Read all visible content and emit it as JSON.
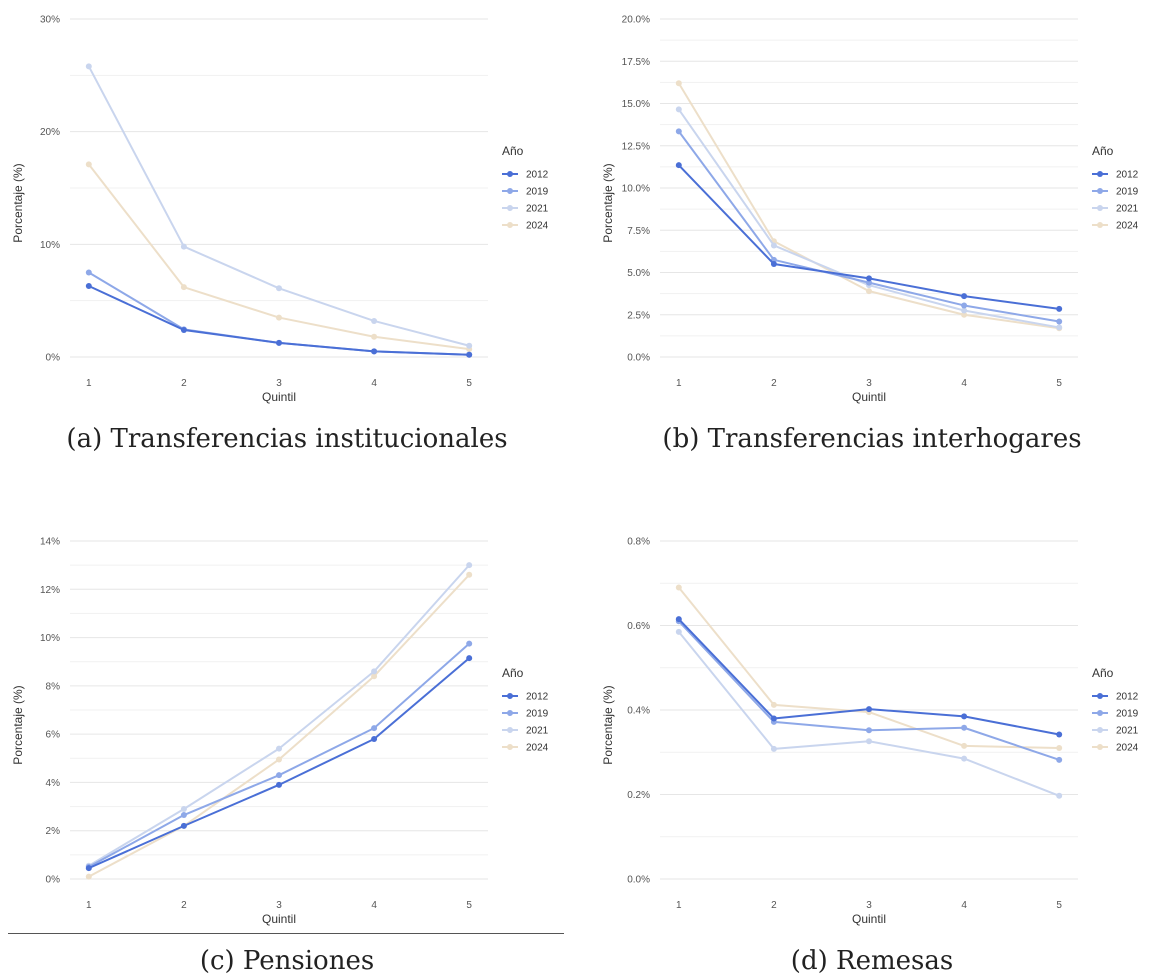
{
  "legend_title": "Año",
  "series_colors": {
    "2012": "#4a6fd6",
    "2019": "#8ea8e8",
    "2021": "#c9d5ee",
    "2024": "#eddfc9"
  },
  "chart_data": [
    {
      "type": "line",
      "caption": "(a) Transferencias institucionales",
      "xlabel": "Quintil",
      "ylabel": "Porcentaje (%)",
      "x": [
        1,
        2,
        3,
        4,
        5
      ],
      "ylim": [
        0,
        30
      ],
      "y_ticks": [
        0,
        10,
        20,
        30
      ],
      "y_tick_labels": [
        "0%",
        "10%",
        "20%",
        "30%"
      ],
      "legend_position": "right",
      "series": [
        {
          "name": "2012",
          "values": [
            6.3,
            2.4,
            1.25,
            0.5,
            0.2
          ]
        },
        {
          "name": "2019",
          "values": [
            7.5,
            2.45,
            1.25,
            0.5,
            0.2
          ]
        },
        {
          "name": "2021",
          "values": [
            25.8,
            9.8,
            6.1,
            3.2,
            1.0
          ]
        },
        {
          "name": "2024",
          "values": [
            17.1,
            6.2,
            3.5,
            1.8,
            0.7
          ]
        }
      ]
    },
    {
      "type": "line",
      "caption": "(b) Transferencias interhogares",
      "xlabel": "Quintil",
      "ylabel": "Porcentaje (%)",
      "x": [
        1,
        2,
        3,
        4,
        5
      ],
      "ylim": [
        0,
        20
      ],
      "y_ticks": [
        0,
        2.5,
        5,
        7.5,
        10,
        12.5,
        15,
        17.5,
        20
      ],
      "y_tick_labels": [
        "0.0%",
        "2.5%",
        "5.0%",
        "7.5%",
        "10.0%",
        "12.5%",
        "15.0%",
        "17.5%",
        "20.0%"
      ],
      "legend_position": "right",
      "series": [
        {
          "name": "2012",
          "values": [
            11.35,
            5.5,
            4.65,
            3.6,
            2.85
          ]
        },
        {
          "name": "2019",
          "values": [
            13.35,
            5.75,
            4.4,
            3.05,
            2.1
          ]
        },
        {
          "name": "2021",
          "values": [
            14.65,
            6.6,
            4.25,
            2.75,
            1.75
          ]
        },
        {
          "name": "2024",
          "values": [
            16.2,
            6.85,
            3.9,
            2.5,
            1.7
          ]
        }
      ]
    },
    {
      "type": "line",
      "caption": "(c) Pensiones",
      "xlabel": "Quintil",
      "ylabel": "Porcentaje (%)",
      "x": [
        1,
        2,
        3,
        4,
        5
      ],
      "ylim": [
        0,
        14
      ],
      "y_ticks": [
        0,
        2,
        4,
        6,
        8,
        10,
        12,
        14
      ],
      "y_tick_labels": [
        "0%",
        "2%",
        "4%",
        "6%",
        "8%",
        "10%",
        "12%",
        "14%"
      ],
      "legend_position": "right",
      "series": [
        {
          "name": "2012",
          "values": [
            0.45,
            2.2,
            3.9,
            5.8,
            9.15
          ]
        },
        {
          "name": "2019",
          "values": [
            0.5,
            2.65,
            4.3,
            6.25,
            9.75
          ]
        },
        {
          "name": "2021",
          "values": [
            0.55,
            2.9,
            5.4,
            8.6,
            13.0
          ]
        },
        {
          "name": "2024",
          "values": [
            0.1,
            2.2,
            4.95,
            8.4,
            12.6
          ]
        }
      ]
    },
    {
      "type": "line",
      "caption": "(d) Remesas",
      "xlabel": "Quintil",
      "ylabel": "Porcentaje (%)",
      "x": [
        1,
        2,
        3,
        4,
        5
      ],
      "ylim": [
        0,
        0.8
      ],
      "y_ticks": [
        0,
        0.2,
        0.4,
        0.6,
        0.8
      ],
      "y_tick_labels": [
        "0.0%",
        "0.2%",
        "0.4%",
        "0.6%",
        "0.8%"
      ],
      "legend_position": "right",
      "series": [
        {
          "name": "2012",
          "values": [
            0.615,
            0.38,
            0.402,
            0.385,
            0.342
          ]
        },
        {
          "name": "2019",
          "values": [
            0.61,
            0.372,
            0.352,
            0.358,
            0.282
          ]
        },
        {
          "name": "2021",
          "values": [
            0.585,
            0.308,
            0.326,
            0.285,
            0.197
          ]
        },
        {
          "name": "2024",
          "values": [
            0.69,
            0.412,
            0.395,
            0.315,
            0.31
          ]
        }
      ]
    }
  ]
}
